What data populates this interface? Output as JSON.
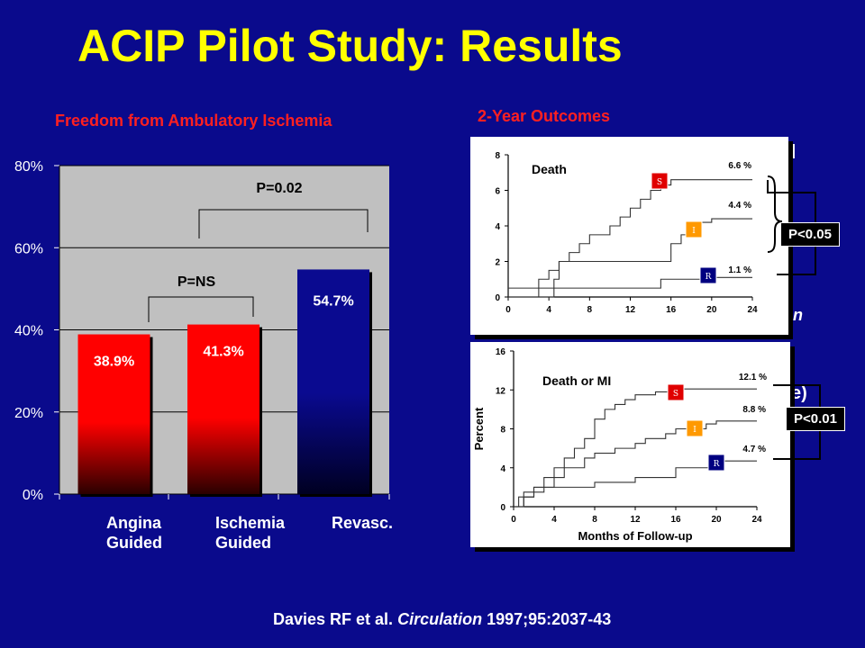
{
  "slide": {
    "title": "ACIP Pilot Study: Results",
    "citation_authors": "Davies RF et al.",
    "citation_journal": "Circulation",
    "citation_ref": "1997;95:2037-43"
  },
  "bar_panel": {
    "subtitle": "Freedom from Ambulatory Ischemia",
    "pvalue_all": "P=0.02",
    "pvalue_ns": "P=NS",
    "category_lines": [
      [
        "Angina",
        "Guided"
      ],
      [
        "Ischemia",
        "Guided"
      ],
      [
        "Revasc.",
        ""
      ]
    ]
  },
  "km_panel": {
    "subtitle": "2-Year Outcomes",
    "death_label": "Death",
    "death_mi_label": "Death or MI",
    "p_death": "P<0.05",
    "p_death_mi": "P<0.01",
    "arm_letters": [
      "S",
      "I",
      "R"
    ]
  },
  "colors": {
    "background": "#0a0a8c",
    "title": "#ffff00",
    "subtitle": "#ff2020",
    "bar_red": "#ff0000",
    "bar_navy": "#000066",
    "arm_S": "#e00000",
    "arm_I": "#ff9900",
    "arm_R": "#000080"
  },
  "chart_data": [
    {
      "type": "bar",
      "title": "Freedom from Ambulatory Ischemia",
      "categories": [
        "Angina Guided",
        "Ischemia Guided",
        "Revasc."
      ],
      "values": [
        38.9,
        41.3,
        54.7
      ],
      "value_labels": [
        "38.9%",
        "41.3%",
        "54.7%"
      ],
      "ylim": [
        0,
        80
      ],
      "yticks": [
        "0%",
        "20%",
        "40%",
        "60%",
        "80%"
      ],
      "ytick_values": [
        0,
        20,
        40,
        60,
        80
      ],
      "grid": true
    },
    {
      "type": "line",
      "title": "Death",
      "xlabel": "",
      "ylabel": "",
      "xlim": [
        0,
        24
      ],
      "ylim": [
        0,
        8
      ],
      "xticks": [
        0,
        4,
        8,
        12,
        16,
        20,
        24
      ],
      "yticks": [
        0,
        2,
        4,
        6,
        8
      ],
      "series": [
        {
          "name": "S",
          "end_label": "6.6 %",
          "points": [
            [
              0,
              0
            ],
            [
              2.5,
              0
            ],
            [
              3,
              1
            ],
            [
              4,
              1.5
            ],
            [
              5,
              2
            ],
            [
              6,
              2.5
            ],
            [
              7,
              3
            ],
            [
              8,
              3.5
            ],
            [
              10,
              4
            ],
            [
              11,
              4.5
            ],
            [
              12,
              5
            ],
            [
              13,
              5.5
            ],
            [
              14,
              6
            ],
            [
              15,
              6.3
            ],
            [
              16,
              6.6
            ],
            [
              24,
              6.6
            ]
          ]
        },
        {
          "name": "I",
          "end_label": "4.4 %",
          "points": [
            [
              0,
              0
            ],
            [
              4,
              0
            ],
            [
              4.5,
              1
            ],
            [
              5,
              2
            ],
            [
              15,
              2
            ],
            [
              16,
              3
            ],
            [
              17,
              3.5
            ],
            [
              18,
              4
            ],
            [
              19,
              4.2
            ],
            [
              20,
              4.4
            ],
            [
              24,
              4.4
            ]
          ]
        },
        {
          "name": "R",
          "end_label": "1.1 %",
          "points": [
            [
              0,
              0.5
            ],
            [
              12,
              0.5
            ],
            [
              15,
              1
            ],
            [
              20,
              1.1
            ],
            [
              24,
              1.1
            ]
          ]
        }
      ]
    },
    {
      "type": "line",
      "title": "Death or MI",
      "xlabel": "Months of Follow-up",
      "ylabel": "Percent",
      "xlim": [
        0,
        24
      ],
      "ylim": [
        0,
        16
      ],
      "xticks": [
        0,
        4,
        8,
        12,
        16,
        20,
        24
      ],
      "yticks": [
        0,
        4,
        8,
        12,
        16
      ],
      "series": [
        {
          "name": "S",
          "end_label": "12.1 %",
          "points": [
            [
              0,
              0
            ],
            [
              0.5,
              1
            ],
            [
              1,
              1.5
            ],
            [
              2,
              2
            ],
            [
              3,
              3
            ],
            [
              4,
              4
            ],
            [
              5,
              5
            ],
            [
              6,
              6
            ],
            [
              7,
              7
            ],
            [
              8,
              9
            ],
            [
              9,
              10
            ],
            [
              10,
              10.5
            ],
            [
              11,
              11
            ],
            [
              12,
              11.5
            ],
            [
              14,
              11.8
            ],
            [
              16,
              12.1
            ],
            [
              24,
              12.1
            ]
          ]
        },
        {
          "name": "I",
          "end_label": "8.8 %",
          "points": [
            [
              0,
              0
            ],
            [
              1,
              1
            ],
            [
              2,
              2
            ],
            [
              4,
              3
            ],
            [
              5,
              4
            ],
            [
              7,
              5
            ],
            [
              8,
              5.5
            ],
            [
              10,
              6
            ],
            [
              12,
              6.5
            ],
            [
              13,
              7
            ],
            [
              15,
              7.5
            ],
            [
              16,
              8
            ],
            [
              19,
              8.5
            ],
            [
              20,
              8.8
            ],
            [
              24,
              8.8
            ]
          ]
        },
        {
          "name": "R",
          "end_label": "4.7 %",
          "points": [
            [
              0,
              0
            ],
            [
              1,
              1
            ],
            [
              2,
              1.5
            ],
            [
              3,
              2
            ],
            [
              8,
              2.5
            ],
            [
              12,
              3
            ],
            [
              16,
              4
            ],
            [
              20,
              4.7
            ],
            [
              24,
              4.7
            ]
          ]
        }
      ]
    }
  ]
}
